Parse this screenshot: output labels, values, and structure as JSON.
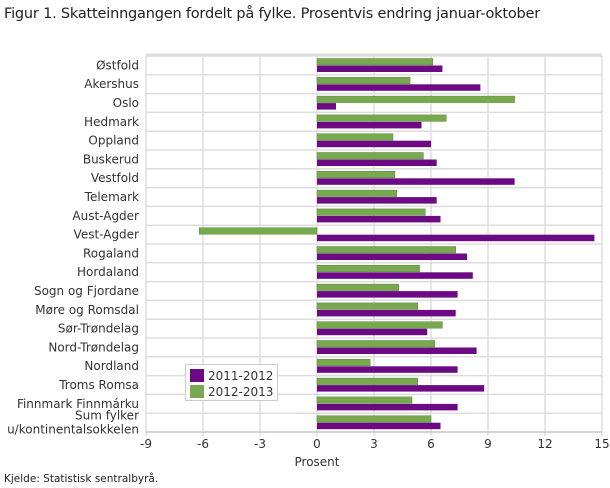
{
  "chart_data": {
    "type": "bar",
    "orientation": "horizontal",
    "title": "Figur 1. Skatteinngangen fordelt på fylke. Prosentvis endring januar-oktober",
    "xlabel": "Prosent",
    "ylabel": "",
    "xlim": [
      -9,
      15
    ],
    "xticks": [
      -9,
      -6,
      -3,
      0,
      3,
      6,
      9,
      12,
      15
    ],
    "grid": true,
    "legend_placement": "bottom-left",
    "categories": [
      "Østfold",
      "Akershus",
      "Oslo",
      "Hedmark",
      "Oppland",
      "Buskerud",
      "Vestfold",
      "Telemark",
      "Aust-Agder",
      "Vest-Agder",
      "Rogaland",
      "Hordaland",
      "Sogn og Fjordane",
      "Møre og Romsdal",
      "Sør-Trøndelag",
      "Nord-Trøndelag",
      "Nordland",
      "Troms Romsa",
      "Finnmark Finnmárku",
      "Sum fylker u/kontinentalsokkelen"
    ],
    "series": [
      {
        "name": "2011-2012",
        "color": "#6b0a83",
        "values": [
          6.6,
          8.6,
          1.0,
          5.5,
          6.0,
          6.3,
          10.4,
          6.3,
          6.5,
          14.6,
          7.9,
          8.2,
          7.4,
          7.3,
          5.8,
          8.4,
          7.4,
          8.8,
          7.4,
          6.5
        ]
      },
      {
        "name": "2012-2013",
        "color": "#78a94f",
        "values": [
          6.1,
          4.9,
          10.4,
          6.8,
          4.0,
          5.6,
          4.1,
          4.2,
          5.7,
          -6.2,
          7.3,
          5.4,
          4.3,
          5.3,
          6.6,
          6.2,
          2.8,
          5.3,
          5.0,
          6.0
        ]
      }
    ]
  },
  "source": "Kjelde: Statistisk sentralbyrå."
}
